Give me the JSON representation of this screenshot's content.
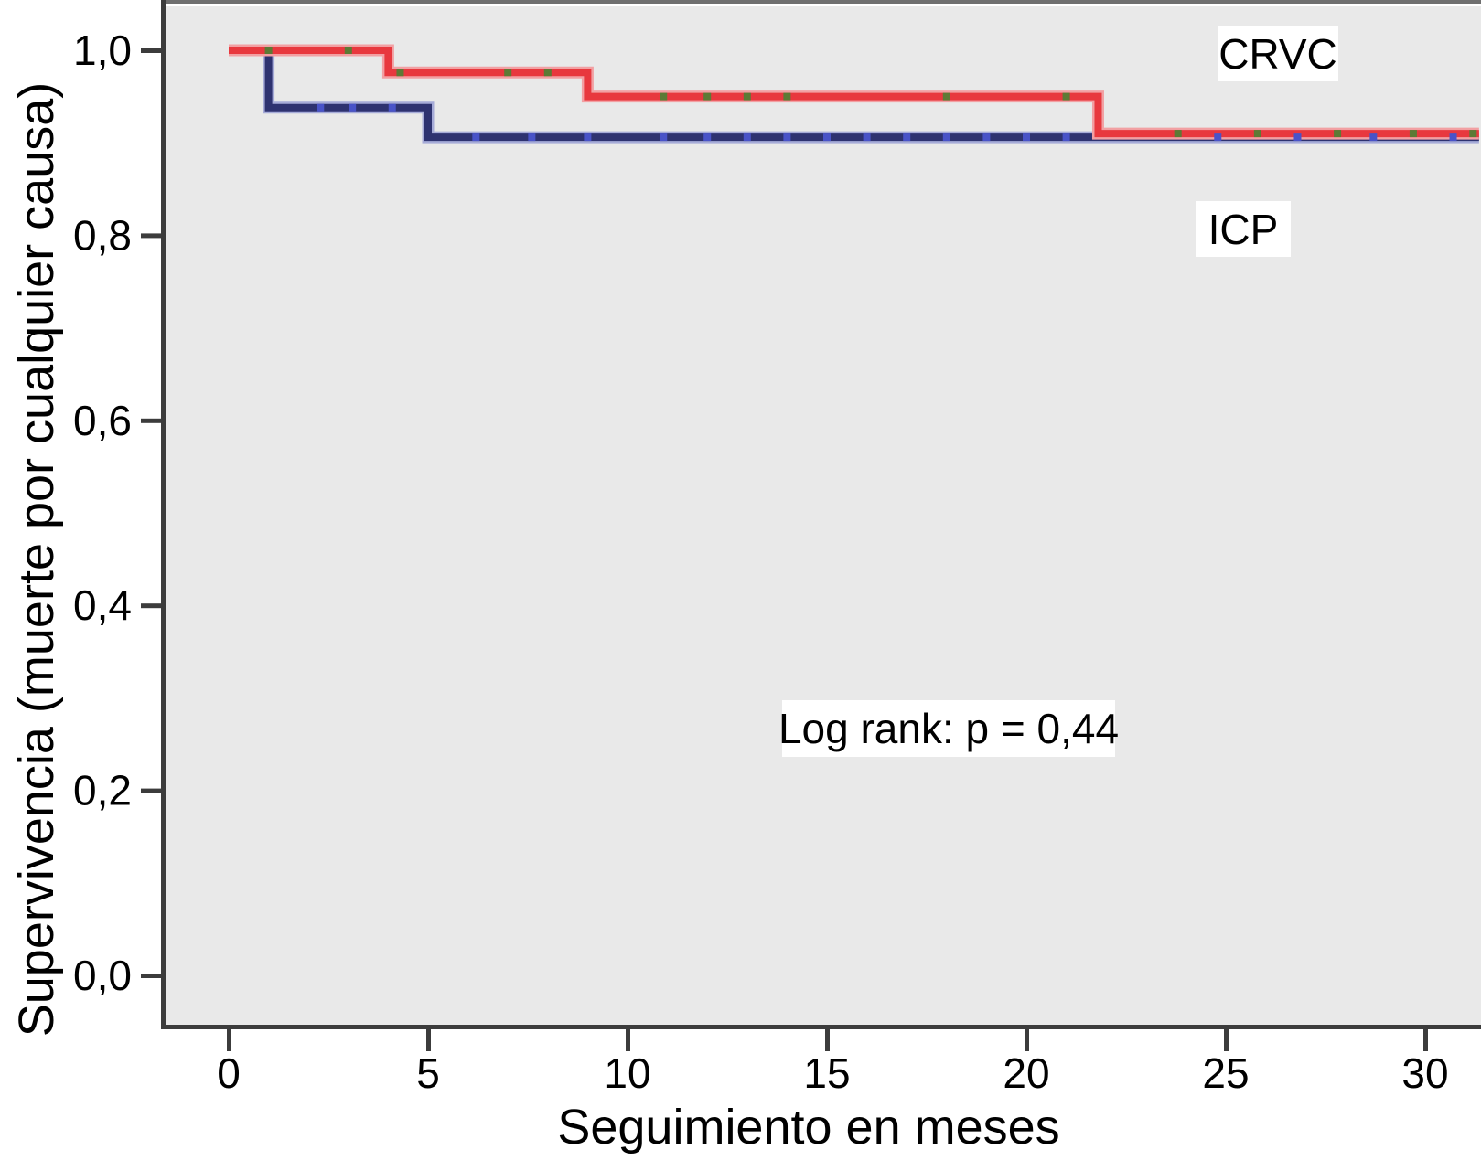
{
  "figure": {
    "kind": "kaplan-meier-survival-plot",
    "background_color": "#ffffff",
    "plot_background_color": "#e9e9e9",
    "axis_color": "#3c3c3c"
  },
  "chart_data": {
    "type": "line",
    "subtype": "step-survival-km",
    "title": "",
    "xlabel": "Seguimiento en meses",
    "ylabel": "Supervivencia (muerte por cualquier causa)",
    "xlim": [
      0,
      31.4
    ],
    "ylim": [
      0.0,
      1.05
    ],
    "grid": false,
    "legend_position": "labels-on-plot",
    "x_ticks": [
      {
        "v": 0,
        "label": "0"
      },
      {
        "v": 5,
        "label": "5"
      },
      {
        "v": 10,
        "label": "10"
      },
      {
        "v": 15,
        "label": "15"
      },
      {
        "v": 20,
        "label": "20"
      },
      {
        "v": 25,
        "label": "25"
      },
      {
        "v": 30,
        "label": "30"
      }
    ],
    "y_ticks": [
      {
        "v": 0.0,
        "label": "0,0"
      },
      {
        "v": 0.2,
        "label": "0,2"
      },
      {
        "v": 0.4,
        "label": "0,4"
      },
      {
        "v": 0.6,
        "label": "0,6"
      },
      {
        "v": 0.8,
        "label": "0,8"
      },
      {
        "v": 1.0,
        "label": "1,0"
      }
    ],
    "annotations": {
      "logrank": "Log rank: p = 0,44"
    },
    "series": [
      {
        "name": "ICP",
        "color": "#2e3270",
        "halo_color": "#a6abd8",
        "censor_color": "#4953c8",
        "event_drops": [
          {
            "month": 1,
            "from": 1.0,
            "to": 0.938
          },
          {
            "month": 5,
            "from": 0.938,
            "to": 0.906
          }
        ],
        "points": [
          [
            0,
            1.0
          ],
          [
            1,
            1.0
          ],
          [
            1,
            0.938
          ],
          [
            5,
            0.938
          ],
          [
            5,
            0.906
          ],
          [
            31.35,
            0.906
          ]
        ],
        "censors": [
          [
            2.3,
            0.938
          ],
          [
            3.1,
            0.938
          ],
          [
            4.1,
            0.938
          ],
          [
            6.2,
            0.906
          ],
          [
            7.6,
            0.906
          ],
          [
            9.0,
            0.906
          ],
          [
            10.9,
            0.906
          ],
          [
            12.0,
            0.906
          ],
          [
            13.0,
            0.906
          ],
          [
            14.0,
            0.906
          ],
          [
            15.0,
            0.906
          ],
          [
            16.0,
            0.906
          ],
          [
            17.0,
            0.906
          ],
          [
            18.0,
            0.906
          ],
          [
            19.0,
            0.906
          ],
          [
            20.0,
            0.906
          ],
          [
            21.0,
            0.906
          ],
          [
            24.8,
            0.906
          ],
          [
            26.8,
            0.906
          ],
          [
            28.7,
            0.906
          ],
          [
            30.7,
            0.906
          ]
        ]
      },
      {
        "name": "CRVC",
        "color": "#e8383e",
        "halo_color": "#f2a0a3",
        "censor_color": "#5d7a35",
        "event_drops": [
          {
            "month": 4,
            "from": 1.0,
            "to": 0.976
          },
          {
            "month": 9,
            "from": 0.976,
            "to": 0.95
          },
          {
            "month": 21.8,
            "from": 0.95,
            "to": 0.91
          }
        ],
        "points": [
          [
            0,
            1.0
          ],
          [
            4,
            1.0
          ],
          [
            4,
            0.976
          ],
          [
            9,
            0.976
          ],
          [
            9,
            0.95
          ],
          [
            21.8,
            0.95
          ],
          [
            21.8,
            0.91
          ],
          [
            31.35,
            0.91
          ]
        ],
        "censors": [
          [
            1.0,
            1.0
          ],
          [
            3.0,
            1.0
          ],
          [
            4.3,
            0.976
          ],
          [
            7.0,
            0.976
          ],
          [
            8.0,
            0.976
          ],
          [
            10.9,
            0.95
          ],
          [
            12.0,
            0.95
          ],
          [
            13.0,
            0.95
          ],
          [
            14.0,
            0.95
          ],
          [
            18.0,
            0.95
          ],
          [
            21.0,
            0.95
          ],
          [
            23.8,
            0.91
          ],
          [
            25.8,
            0.91
          ],
          [
            27.8,
            0.91
          ],
          [
            29.7,
            0.91
          ],
          [
            31.2,
            0.91
          ]
        ]
      }
    ]
  }
}
